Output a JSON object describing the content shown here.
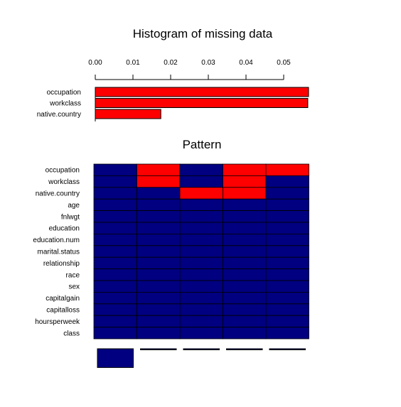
{
  "chart_data": [
    {
      "type": "bar",
      "orientation": "horizontal",
      "title": "Histogram of missing data",
      "categories": [
        "occupation",
        "workclass",
        "native.country"
      ],
      "values": [
        0.0566,
        0.0564,
        0.0174
      ],
      "xlim": [
        0,
        0.057
      ],
      "xticks": [
        0.0,
        0.01,
        0.02,
        0.03,
        0.04,
        0.05
      ],
      "xtick_labels": [
        "0.00",
        "0.01",
        "0.02",
        "0.03",
        "0.04",
        "0.05"
      ],
      "axis_position": "top",
      "bar_color": "#ff0000"
    },
    {
      "type": "heatmap",
      "title": "Pattern",
      "rows": [
        "occupation",
        "workclass",
        "native.country",
        "age",
        "fnlwgt",
        "education",
        "education.num",
        "marital.status",
        "relationship",
        "race",
        "sex",
        "capitalgain",
        "capitalloss",
        "hoursperweek",
        "class"
      ],
      "patterns": [
        [
          0,
          0,
          0,
          0,
          0,
          0,
          0,
          0,
          0,
          0,
          0,
          0,
          0,
          0,
          0
        ],
        [
          1,
          1,
          0,
          0,
          0,
          0,
          0,
          0,
          0,
          0,
          0,
          0,
          0,
          0,
          0
        ],
        [
          0,
          0,
          1,
          0,
          0,
          0,
          0,
          0,
          0,
          0,
          0,
          0,
          0,
          0,
          0
        ],
        [
          1,
          1,
          1,
          0,
          0,
          0,
          0,
          0,
          0,
          0,
          0,
          0,
          0,
          0,
          0
        ],
        [
          1,
          0,
          0,
          0,
          0,
          0,
          0,
          0,
          0,
          0,
          0,
          0,
          0,
          0,
          0
        ]
      ],
      "pattern_frequencies": [
        0.943,
        0.0,
        0.0,
        0.0,
        0.0
      ],
      "colors": {
        "observed": "#000080",
        "missing": "#ff0000"
      }
    }
  ]
}
